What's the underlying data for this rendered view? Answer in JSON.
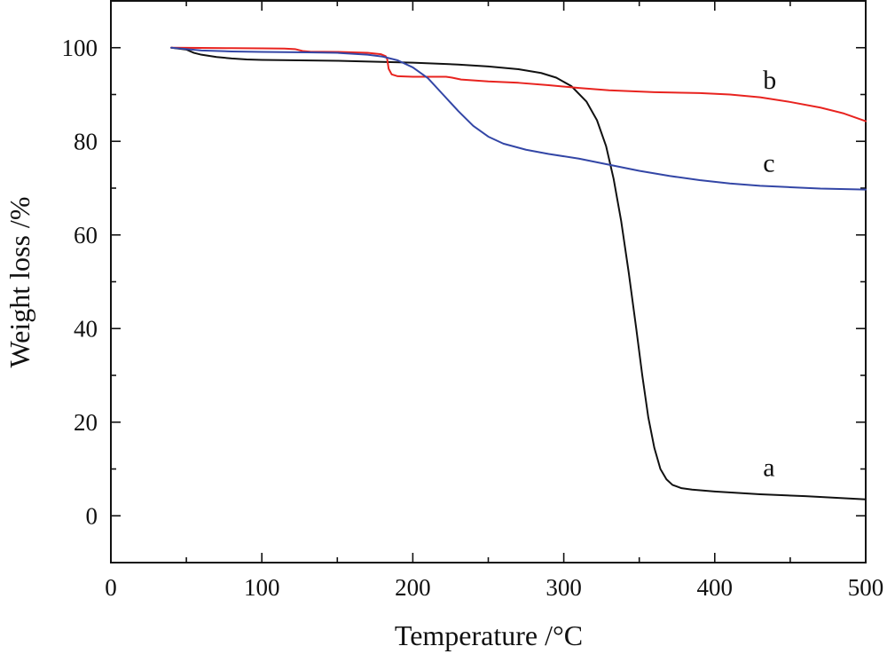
{
  "chart_data": {
    "type": "line",
    "title": "",
    "xlabel": "Temperature /°C",
    "ylabel": "Weight loss /%",
    "xlim": [
      0,
      500
    ],
    "ylim": [
      -10,
      110
    ],
    "x_ticks": [
      0,
      100,
      200,
      300,
      400,
      500
    ],
    "x_tick_labels": [
      "0",
      "100",
      "200",
      "300",
      "400",
      "500"
    ],
    "y_ticks": [
      0,
      20,
      40,
      60,
      80,
      100
    ],
    "y_tick_labels": [
      "0",
      "20",
      "40",
      "60",
      "80",
      "100"
    ],
    "x_minor_step": 50,
    "y_minor_step": 10,
    "grid": false,
    "legend": "none",
    "series": [
      {
        "name": "a",
        "label": "a",
        "label_at": [
          432,
          8.5
        ],
        "color": "#111111",
        "points": [
          [
            40,
            100
          ],
          [
            50,
            99.6
          ],
          [
            55,
            98.9
          ],
          [
            60,
            98.5
          ],
          [
            70,
            98.0
          ],
          [
            80,
            97.7
          ],
          [
            90,
            97.5
          ],
          [
            100,
            97.4
          ],
          [
            150,
            97.2
          ],
          [
            200,
            96.8
          ],
          [
            230,
            96.4
          ],
          [
            250,
            96.0
          ],
          [
            270,
            95.4
          ],
          [
            285,
            94.6
          ],
          [
            295,
            93.6
          ],
          [
            305,
            91.8
          ],
          [
            315,
            88.5
          ],
          [
            322,
            84.5
          ],
          [
            328,
            79.0
          ],
          [
            333,
            72.0
          ],
          [
            338,
            63.0
          ],
          [
            343,
            52.0
          ],
          [
            348,
            40.0
          ],
          [
            352,
            30.0
          ],
          [
            356,
            21.0
          ],
          [
            360,
            14.5
          ],
          [
            364,
            10.0
          ],
          [
            368,
            7.8
          ],
          [
            372,
            6.6
          ],
          [
            378,
            5.9
          ],
          [
            385,
            5.6
          ],
          [
            400,
            5.2
          ],
          [
            430,
            4.6
          ],
          [
            460,
            4.2
          ],
          [
            500,
            3.5
          ]
        ]
      },
      {
        "name": "b",
        "label": "b",
        "label_at": [
          432,
          91.2
        ],
        "color": "#e8231f",
        "points": [
          [
            40,
            100
          ],
          [
            60,
            99.95
          ],
          [
            80,
            99.9
          ],
          [
            100,
            99.85
          ],
          [
            115,
            99.8
          ],
          [
            122,
            99.7
          ],
          [
            127,
            99.3
          ],
          [
            132,
            99.15
          ],
          [
            150,
            99.1
          ],
          [
            170,
            98.9
          ],
          [
            179,
            98.6
          ],
          [
            182,
            98.2
          ],
          [
            183,
            97.6
          ],
          [
            184,
            95.5
          ],
          [
            186,
            94.3
          ],
          [
            190,
            93.9
          ],
          [
            200,
            93.8
          ],
          [
            215,
            93.8
          ],
          [
            222,
            93.8
          ],
          [
            226,
            93.6
          ],
          [
            232,
            93.2
          ],
          [
            250,
            92.8
          ],
          [
            270,
            92.5
          ],
          [
            290,
            92.0
          ],
          [
            310,
            91.4
          ],
          [
            330,
            90.9
          ],
          [
            360,
            90.5
          ],
          [
            390,
            90.3
          ],
          [
            410,
            90.0
          ],
          [
            430,
            89.4
          ],
          [
            450,
            88.4
          ],
          [
            470,
            87.2
          ],
          [
            485,
            86.0
          ],
          [
            500,
            84.3
          ]
        ]
      },
      {
        "name": "c",
        "label": "c",
        "label_at": [
          432,
          73.5
        ],
        "color": "#3346a6",
        "points": [
          [
            40,
            100
          ],
          [
            60,
            99.4
          ],
          [
            80,
            99.2
          ],
          [
            100,
            99.1
          ],
          [
            130,
            99.0
          ],
          [
            150,
            98.9
          ],
          [
            170,
            98.5
          ],
          [
            180,
            98.1
          ],
          [
            190,
            97.3
          ],
          [
            200,
            95.8
          ],
          [
            210,
            93.5
          ],
          [
            220,
            90.0
          ],
          [
            230,
            86.5
          ],
          [
            240,
            83.3
          ],
          [
            250,
            81.0
          ],
          [
            260,
            79.5
          ],
          [
            275,
            78.2
          ],
          [
            290,
            77.3
          ],
          [
            310,
            76.3
          ],
          [
            330,
            75.0
          ],
          [
            350,
            73.7
          ],
          [
            370,
            72.6
          ],
          [
            390,
            71.7
          ],
          [
            410,
            71.0
          ],
          [
            430,
            70.5
          ],
          [
            450,
            70.2
          ],
          [
            470,
            69.9
          ],
          [
            500,
            69.7
          ]
        ]
      }
    ]
  }
}
